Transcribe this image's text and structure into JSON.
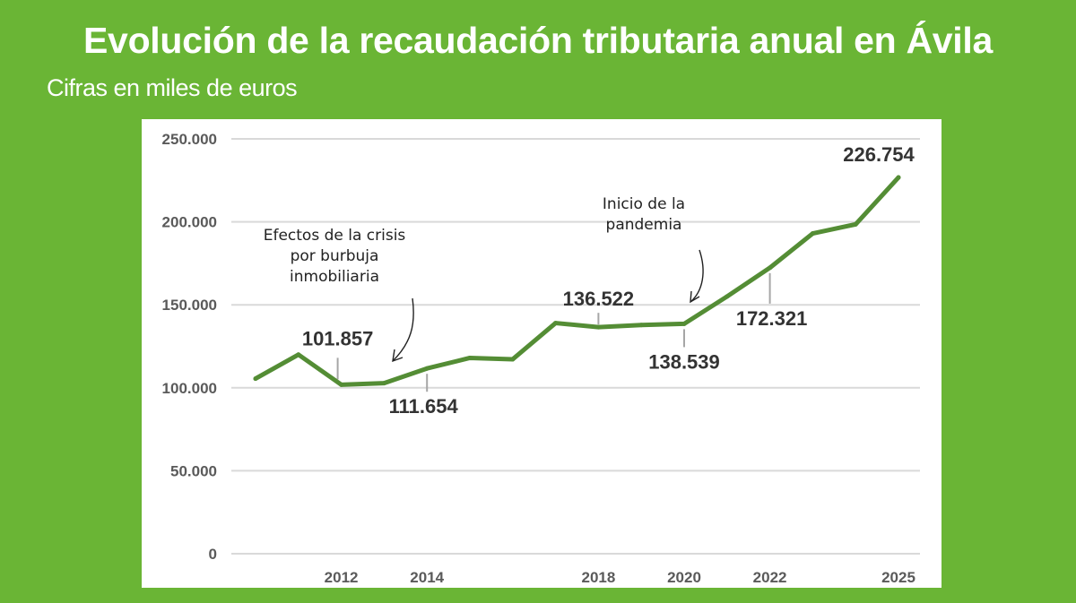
{
  "header": {
    "title": "Evolución de la recaudación tributaria anual en Ávila",
    "subtitle": "Cifras en miles de euros"
  },
  "colors": {
    "background": "#6ab535",
    "line": "#548d35",
    "grid": "#d9d9d9",
    "leader": "#a6a6a6"
  },
  "chart_data": {
    "type": "line",
    "title": "Evolución de la recaudación tributaria anual en Ávila",
    "subtitle": "Cifras en miles de euros",
    "xlabel": "",
    "ylabel": "",
    "ylim": [
      0,
      250000
    ],
    "xlim": [
      2010,
      2025
    ],
    "y_ticks": [
      "0",
      "50.000",
      "100.000",
      "150.000",
      "200.000",
      "250.000"
    ],
    "y_tick_values": [
      0,
      50000,
      100000,
      150000,
      200000,
      250000
    ],
    "x_ticks": [
      "2012",
      "2014",
      "2018",
      "2020",
      "2022",
      "2025"
    ],
    "x_tick_values": [
      2012,
      2014,
      2018,
      2020,
      2022,
      2025
    ],
    "grid": true,
    "legend": "none",
    "series": [
      {
        "x": [
          2010,
          2011,
          2012,
          2013,
          2014,
          2015,
          2016,
          2017,
          2018,
          2019,
          2020,
          2021,
          2022,
          2023,
          2024,
          2025
        ],
        "values": [
          105500,
          120000,
          101857,
          102800,
          111654,
          118000,
          117200,
          139000,
          136522,
          137800,
          138539,
          155000,
          172321,
          193000,
          198500,
          226754
        ]
      }
    ],
    "data_labels": [
      {
        "x": 2012,
        "text": "101.857"
      },
      {
        "x": 2014,
        "text": "111.654"
      },
      {
        "x": 2018,
        "text": "136.522"
      },
      {
        "x": 2020,
        "text": "138.539"
      },
      {
        "x": 2022,
        "text": "172.321"
      },
      {
        "x": 2025,
        "text": "226.754"
      }
    ],
    "annotations": [
      {
        "lines": [
          "Efectos de la crisis",
          "por burbuja",
          "inmobiliaria"
        ]
      },
      {
        "lines": [
          "Inicio de la",
          "pandemia"
        ]
      }
    ]
  }
}
